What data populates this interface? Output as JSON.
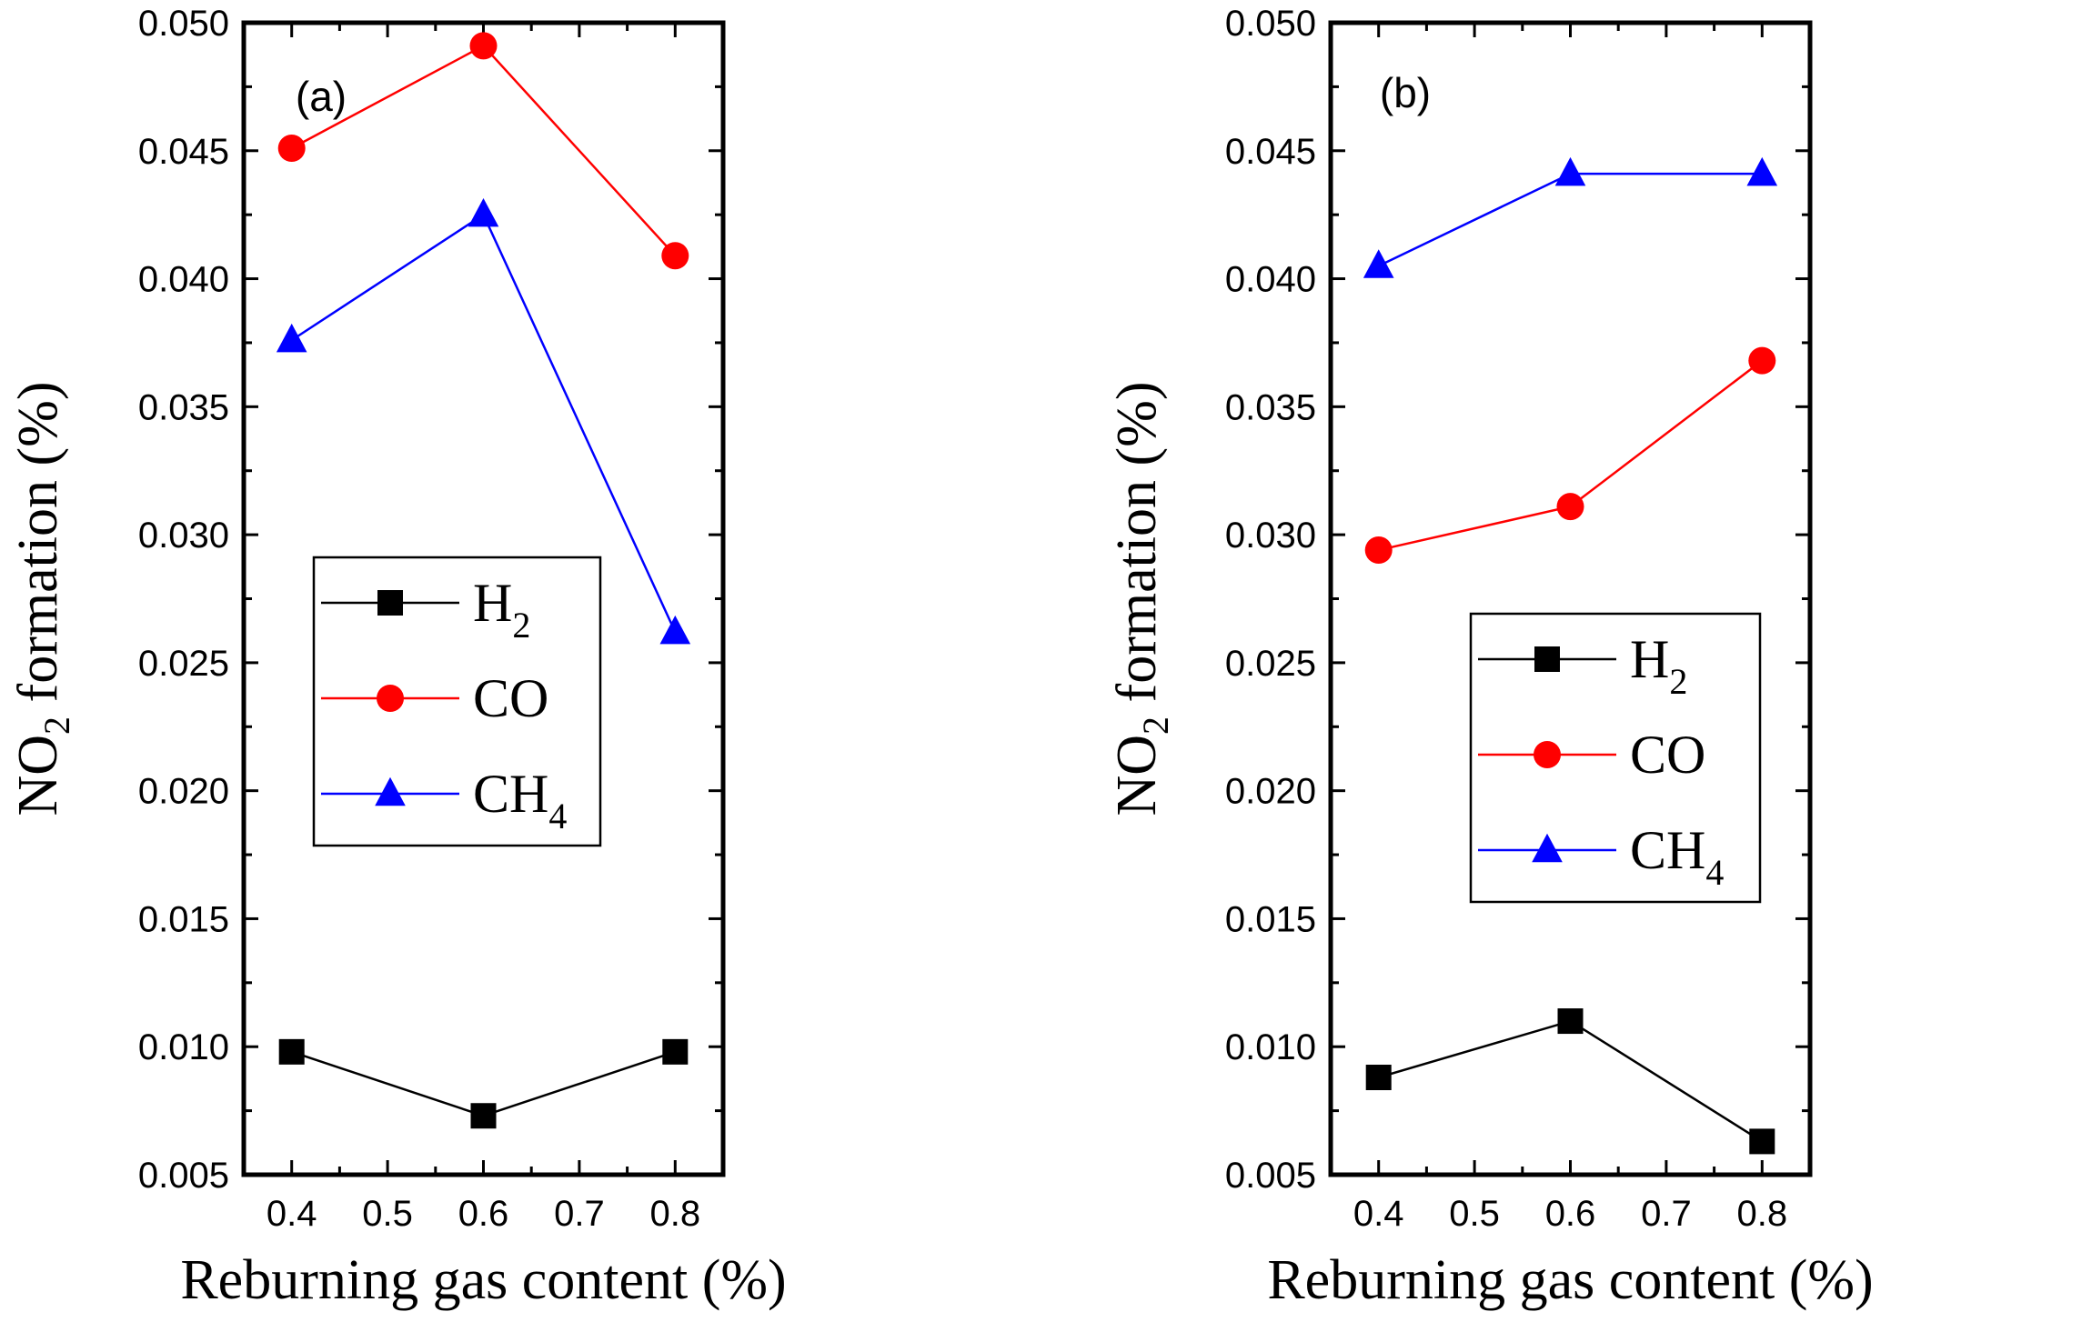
{
  "chart_data": [
    {
      "type": "line",
      "panel_label": "(a)",
      "xlabel": "Reburning gas content (%)",
      "ylabel": "NO2 formation (%)",
      "ylabel_parts": {
        "main": "NO",
        "sub": "2",
        "rest": " formation (%)"
      },
      "xlim": [
        0.35,
        0.85
      ],
      "ylim": [
        0.005,
        0.05
      ],
      "x_ticks": [
        "0.4",
        "0.5",
        "0.6",
        "0.7",
        "0.8"
      ],
      "y_ticks": [
        "0.005",
        "0.010",
        "0.015",
        "0.020",
        "0.025",
        "0.030",
        "0.035",
        "0.040",
        "0.045",
        "0.050"
      ],
      "x": [
        0.4,
        0.6,
        0.8
      ],
      "legend_position": "center-left",
      "series": [
        {
          "name": "H2",
          "label_main": "H",
          "label_sub": "2",
          "color": "#000000",
          "marker": "square",
          "values": [
            0.0098,
            0.0073,
            0.0098
          ]
        },
        {
          "name": "CO",
          "label_main": "CO",
          "label_sub": "",
          "color": "#ff0000",
          "marker": "circle",
          "values": [
            0.0451,
            0.0491,
            0.0409
          ]
        },
        {
          "name": "CH4",
          "label_main": "CH",
          "label_sub": "4",
          "color": "#0000ff",
          "marker": "triangle",
          "values": [
            0.0376,
            0.0425,
            0.0262
          ]
        }
      ]
    },
    {
      "type": "line",
      "panel_label": "(b)",
      "xlabel": "Reburning gas content (%)",
      "ylabel": "NO2 formation (%)",
      "ylabel_parts": {
        "main": "NO",
        "sub": "2",
        "rest": " formation (%)"
      },
      "xlim": [
        0.35,
        0.85
      ],
      "ylim": [
        0.005,
        0.05
      ],
      "x_ticks": [
        "0.4",
        "0.5",
        "0.6",
        "0.7",
        "0.8"
      ],
      "y_ticks": [
        "0.005",
        "0.010",
        "0.015",
        "0.020",
        "0.025",
        "0.030",
        "0.035",
        "0.040",
        "0.045",
        "0.050"
      ],
      "x": [
        0.4,
        0.6,
        0.8
      ],
      "legend_position": "center-right",
      "series": [
        {
          "name": "H2",
          "label_main": "H",
          "label_sub": "2",
          "color": "#000000",
          "marker": "square",
          "values": [
            0.0088,
            0.011,
            0.0063
          ]
        },
        {
          "name": "CO",
          "label_main": "CO",
          "label_sub": "",
          "color": "#ff0000",
          "marker": "circle",
          "values": [
            0.0294,
            0.0311,
            0.0368
          ]
        },
        {
          "name": "CH4",
          "label_main": "CH",
          "label_sub": "4",
          "color": "#0000ff",
          "marker": "triangle",
          "values": [
            0.0405,
            0.0441,
            0.0441
          ]
        }
      ]
    }
  ]
}
